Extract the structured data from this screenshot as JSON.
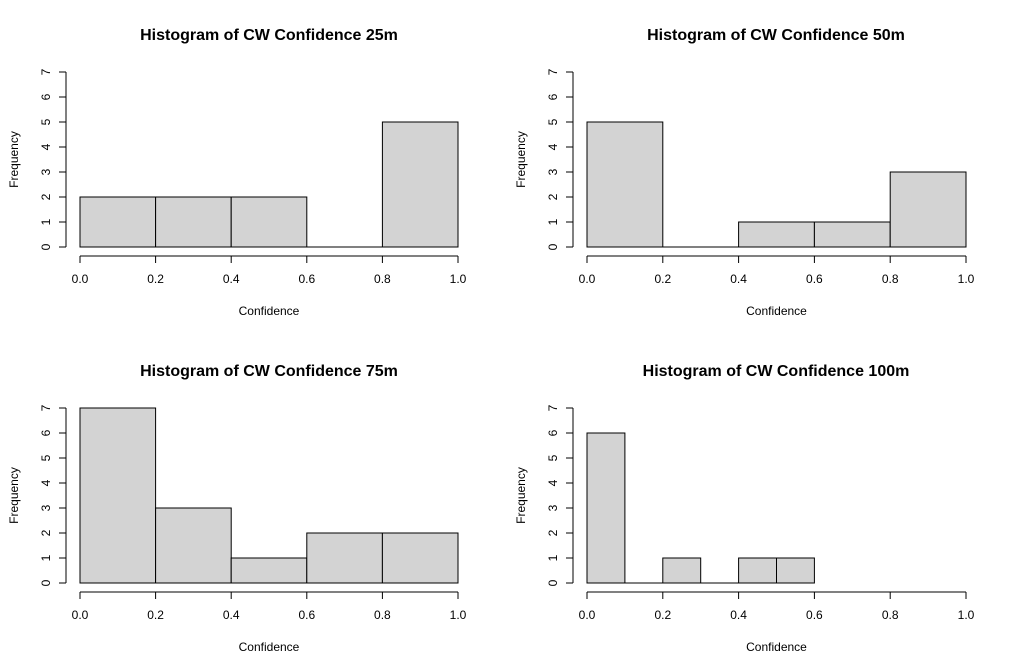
{
  "style": {
    "bar_fill": "#d3d3d3",
    "bar_stroke": "#000000",
    "background": "#ffffff"
  },
  "chart_data": [
    {
      "type": "bar",
      "title": "Histogram of CW Confidence 25m",
      "xlabel": "Confidence",
      "ylabel": "Frequency",
      "xlim": [
        0,
        1
      ],
      "ylim": [
        0,
        7
      ],
      "x_ticks": [
        "0.0",
        "0.2",
        "0.4",
        "0.6",
        "0.8",
        "1.0"
      ],
      "y_ticks": [
        "0",
        "1",
        "2",
        "3",
        "4",
        "5",
        "6",
        "7"
      ],
      "bins": [
        {
          "start": 0.0,
          "end": 0.2,
          "count": 2
        },
        {
          "start": 0.2,
          "end": 0.4,
          "count": 2
        },
        {
          "start": 0.4,
          "end": 0.6,
          "count": 2
        },
        {
          "start": 0.6,
          "end": 0.8,
          "count": 0
        },
        {
          "start": 0.8,
          "end": 1.0,
          "count": 5
        }
      ]
    },
    {
      "type": "bar",
      "title": "Histogram of CW Confidence 50m",
      "xlabel": "Confidence",
      "ylabel": "Frequency",
      "xlim": [
        0,
        1
      ],
      "ylim": [
        0,
        7
      ],
      "x_ticks": [
        "0.0",
        "0.2",
        "0.4",
        "0.6",
        "0.8",
        "1.0"
      ],
      "y_ticks": [
        "0",
        "1",
        "2",
        "3",
        "4",
        "5",
        "6",
        "7"
      ],
      "bins": [
        {
          "start": 0.0,
          "end": 0.2,
          "count": 5
        },
        {
          "start": 0.2,
          "end": 0.4,
          "count": 0
        },
        {
          "start": 0.4,
          "end": 0.6,
          "count": 1
        },
        {
          "start": 0.6,
          "end": 0.8,
          "count": 1
        },
        {
          "start": 0.8,
          "end": 1.0,
          "count": 3
        }
      ]
    },
    {
      "type": "bar",
      "title": "Histogram of CW Confidence 75m",
      "xlabel": "Confidence",
      "ylabel": "Frequency",
      "xlim": [
        0,
        1
      ],
      "ylim": [
        0,
        7
      ],
      "x_ticks": [
        "0.0",
        "0.2",
        "0.4",
        "0.6",
        "0.8",
        "1.0"
      ],
      "y_ticks": [
        "0",
        "1",
        "2",
        "3",
        "4",
        "5",
        "6",
        "7"
      ],
      "bins": [
        {
          "start": 0.0,
          "end": 0.2,
          "count": 7
        },
        {
          "start": 0.2,
          "end": 0.4,
          "count": 3
        },
        {
          "start": 0.4,
          "end": 0.6,
          "count": 1
        },
        {
          "start": 0.6,
          "end": 0.8,
          "count": 2
        },
        {
          "start": 0.8,
          "end": 1.0,
          "count": 2
        }
      ]
    },
    {
      "type": "bar",
      "title": "Histogram of CW Confidence 100m",
      "xlabel": "Confidence",
      "ylabel": "Frequency",
      "xlim": [
        0,
        1
      ],
      "ylim": [
        0,
        7
      ],
      "x_ticks": [
        "0.0",
        "0.2",
        "0.4",
        "0.6",
        "0.8",
        "1.0"
      ],
      "y_ticks": [
        "0",
        "1",
        "2",
        "3",
        "4",
        "5",
        "6",
        "7"
      ],
      "bins": [
        {
          "start": 0.0,
          "end": 0.1,
          "count": 6
        },
        {
          "start": 0.1,
          "end": 0.2,
          "count": 0
        },
        {
          "start": 0.2,
          "end": 0.3,
          "count": 1
        },
        {
          "start": 0.3,
          "end": 0.4,
          "count": 0
        },
        {
          "start": 0.4,
          "end": 0.5,
          "count": 1
        },
        {
          "start": 0.5,
          "end": 0.6,
          "count": 1
        }
      ]
    }
  ]
}
